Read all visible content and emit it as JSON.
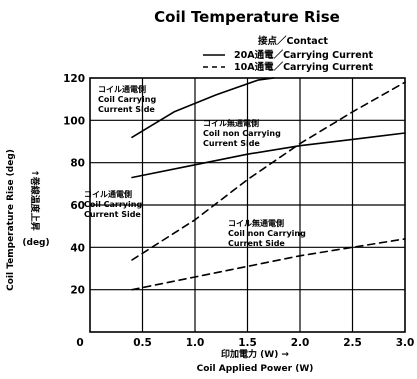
{
  "chart_data": {
    "type": "line",
    "title": "Coil Temperature Rise",
    "legend": {
      "heading": "接点／Contact",
      "placement": "top-right",
      "entries": [
        {
          "label": "20A通電／Carrying Current",
          "style": "solid"
        },
        {
          "label": "10A通電／Carrying Current",
          "style": "dashed"
        }
      ]
    },
    "xlabel": [
      "印加電力 (W) →",
      "Coil Applied Power (W)"
    ],
    "ylabel": {
      "en": "Coil Temperature Rise (deg)",
      "jp": "↑巻線温度上昇",
      "unit": "(deg)"
    },
    "xlim": [
      0,
      3.0
    ],
    "ylim": [
      0,
      120
    ],
    "x_ticks": [
      "0",
      "0.5",
      "1.0",
      "1.5",
      "2.0",
      "2.5",
      "3.0"
    ],
    "y_ticks": [
      "20",
      "40",
      "60",
      "80",
      "100",
      "120"
    ],
    "grid": true,
    "series": [
      {
        "id": "s20_carry",
        "style": "solid",
        "x": [
          0.4,
          0.8,
          1.2,
          1.6,
          1.75
        ],
        "y": [
          92,
          104,
          112,
          119,
          122
        ]
      },
      {
        "id": "s20_noncarry",
        "style": "solid",
        "x": [
          0.4,
          1.0,
          1.5,
          2.0,
          2.5,
          3.0
        ],
        "y": [
          73,
          79,
          84,
          88,
          91,
          94
        ]
      },
      {
        "id": "s10_carry",
        "style": "dashed",
        "x": [
          0.4,
          1.0,
          1.5,
          2.0,
          2.5,
          3.0
        ],
        "y": [
          34,
          53,
          72,
          89,
          104,
          118
        ]
      },
      {
        "id": "s10_noncarry",
        "style": "dashed",
        "x": [
          0.4,
          1.0,
          1.5,
          2.0,
          2.5,
          3.0
        ],
        "y": [
          20,
          26,
          31,
          36,
          40,
          44
        ]
      }
    ],
    "annotations": [
      {
        "lines": [
          "コイル通電側",
          "Coil Carrying",
          "Current Side"
        ]
      },
      {
        "lines": [
          "コイル無通電側",
          "Coil non Carrying",
          "Current Side"
        ]
      },
      {
        "lines": [
          "コイル通電側",
          "Coil Carrying",
          "Current Side"
        ]
      },
      {
        "lines": [
          "コイル無通電側",
          "Coil non Carrying",
          "Current Side"
        ]
      }
    ]
  }
}
